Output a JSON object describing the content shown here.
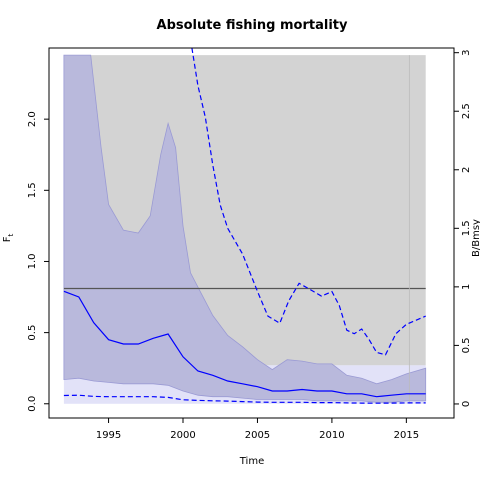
{
  "chart_data": {
    "type": "line",
    "title": "Absolute fishing mortality",
    "xlabel": "Time",
    "ylabel_left": "F",
    "ylabel_left_subscript": "t",
    "ylabel_right": "B/Bmsy",
    "xlim": [
      1991,
      2018.2
    ],
    "ylim_left": [
      -0.1,
      2.5
    ],
    "ylim_right": [
      -0.12,
      3.04
    ],
    "x_ticks": [
      1995,
      2000,
      2005,
      2010,
      2015
    ],
    "y_ticks_left": [
      0.0,
      0.5,
      1.0,
      1.5,
      2.0
    ],
    "y_ticks_left_labels": [
      "0.0",
      "0.5",
      "1.0",
      "1.5",
      "2.0"
    ],
    "y_ticks_right": [
      0,
      0.5,
      1,
      1.5,
      2,
      2.5,
      3
    ],
    "y_ticks_right_labels": [
      "0",
      "0.5",
      "1",
      "1.5",
      "2",
      "2.5",
      "3"
    ],
    "colors": {
      "grey_band": "#d3d3d3",
      "ci_band": "#b9b9dc",
      "ci_band_outline": "#9a9ad4",
      "light_band": "#e2e2f8",
      "line": "#0000ff",
      "fmsy_line": "#555555",
      "vline": "#bbbbbb"
    },
    "grey_band": {
      "x": [
        1992,
        2016.3
      ],
      "y": [
        0.27,
        2.45
      ]
    },
    "fmsy_level": 0.81,
    "last_obs_x": 2015.2,
    "series": [
      {
        "key": "F_estimate",
        "style": "solid",
        "x": [
          1992,
          1993,
          1994,
          1995,
          1996,
          1997,
          1998,
          1999,
          2000,
          2001,
          2002,
          2003,
          2004,
          2005,
          2006,
          2007,
          2008,
          2009,
          2010,
          2011,
          2012,
          2013,
          2014,
          2015,
          2016.3
        ],
        "y": [
          0.79,
          0.75,
          0.57,
          0.45,
          0.42,
          0.42,
          0.46,
          0.49,
          0.33,
          0.23,
          0.2,
          0.16,
          0.14,
          0.12,
          0.09,
          0.09,
          0.1,
          0.09,
          0.09,
          0.07,
          0.07,
          0.05,
          0.06,
          0.07,
          0.07
        ]
      },
      {
        "key": "F_upper",
        "style": "band",
        "x": [
          1992,
          1993,
          1993.8,
          1994.5,
          1995,
          1996,
          1997,
          1997.8,
          1998.5,
          1999,
          1999.5,
          2000,
          2000.5,
          2001,
          2002,
          2003,
          2004,
          2005,
          2006,
          2007,
          2008,
          2009,
          2010,
          2011,
          2012,
          2013,
          2014,
          2015,
          2016.3
        ],
        "y": [
          2.45,
          2.45,
          2.45,
          1.8,
          1.4,
          1.22,
          1.2,
          1.32,
          1.75,
          1.97,
          1.8,
          1.25,
          0.92,
          0.82,
          0.62,
          0.48,
          0.4,
          0.31,
          0.24,
          0.31,
          0.3,
          0.28,
          0.28,
          0.2,
          0.18,
          0.14,
          0.17,
          0.21,
          0.25
        ]
      },
      {
        "key": "F_lower",
        "style": "band",
        "x": [
          1992,
          1993,
          1994,
          1995,
          1996,
          1997,
          1998,
          1999,
          2000,
          2001,
          2002,
          2003,
          2004,
          2005,
          2006,
          2007,
          2008,
          2009,
          2010,
          2011,
          2012,
          2013,
          2014,
          2015,
          2016.3
        ],
        "y": [
          0.17,
          0.18,
          0.16,
          0.15,
          0.14,
          0.14,
          0.14,
          0.13,
          0.09,
          0.06,
          0.05,
          0.05,
          0.04,
          0.03,
          0.03,
          0.03,
          0.03,
          0.02,
          0.02,
          0.02,
          0.02,
          0.01,
          0.01,
          0.02,
          0.02
        ]
      },
      {
        "key": "F_over_Fmsy",
        "style": "dashed",
        "x": [
          2000.6,
          2001,
          2001.5,
          2002,
          2002.5,
          2003,
          2004,
          2005,
          2005.7,
          2006.5,
          2007.1,
          2007.8,
          2008.5,
          2009.3,
          2010,
          2010.5,
          2011,
          2011.5,
          2012,
          2012.5,
          2013,
          2013.6,
          2014.3,
          2015,
          2016.3
        ],
        "y": [
          3.04,
          2.72,
          2.45,
          2.04,
          1.7,
          1.5,
          1.28,
          0.96,
          0.75,
          0.69,
          0.88,
          1.03,
          0.98,
          0.92,
          0.96,
          0.84,
          0.63,
          0.6,
          0.64,
          0.55,
          0.44,
          0.42,
          0.6,
          0.68,
          0.75
        ]
      },
      {
        "key": "B_over_Bmsy",
        "style": "dashed",
        "x": [
          1992,
          1993,
          1994,
          1995,
          1996,
          1997,
          1998,
          1999,
          2000,
          2001,
          2002,
          2003,
          2004,
          2005,
          2006,
          2007,
          2008,
          2009,
          2010,
          2011,
          2012,
          2013,
          2014,
          2015,
          2016.3
        ],
        "y": [
          0.058,
          0.06,
          0.052,
          0.05,
          0.05,
          0.05,
          0.05,
          0.045,
          0.028,
          0.024,
          0.021,
          0.019,
          0.015,
          0.012,
          0.01,
          0.01,
          0.01,
          0.008,
          0.008,
          0.006,
          0.005,
          0.004,
          0.005,
          0.006,
          0.006
        ]
      }
    ]
  }
}
